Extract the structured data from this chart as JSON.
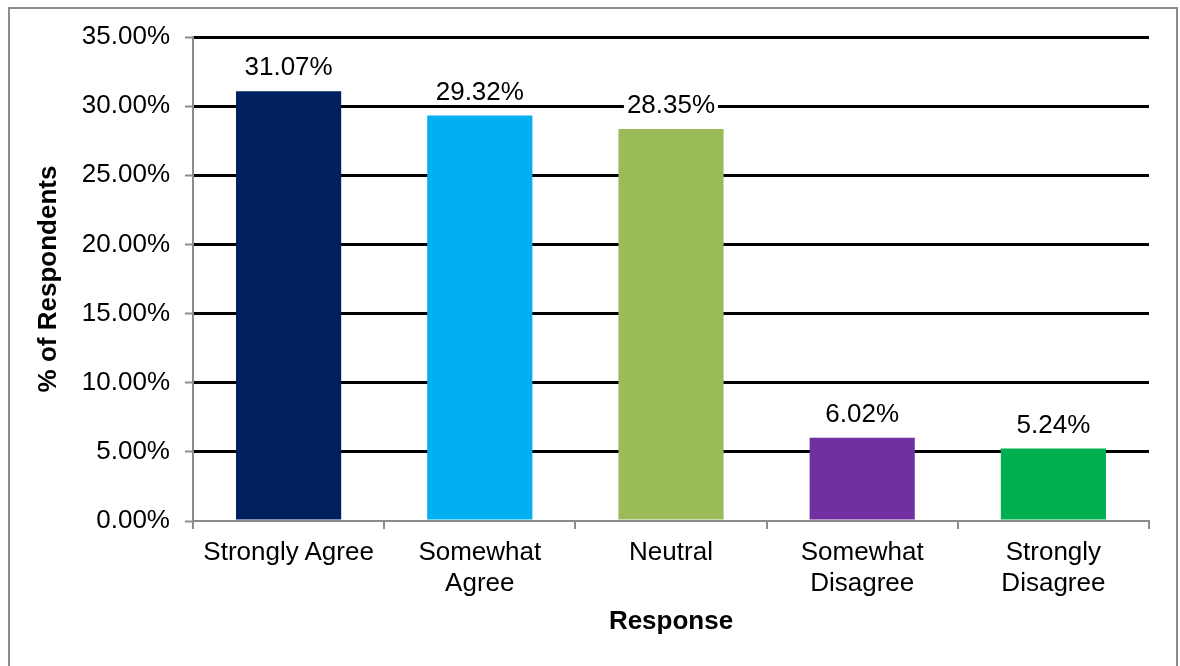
{
  "chart_data": {
    "type": "bar",
    "xlabel": "Response",
    "ylabel": "% of Respondents",
    "categories": [
      "Strongly Agree",
      "Somewhat Agree",
      "Neutral",
      "Somewhat Disagree",
      "Strongly Disagree"
    ],
    "values": [
      31.07,
      29.32,
      28.35,
      6.02,
      5.24
    ],
    "colors": [
      "#002060",
      "#00b0f0",
      "#9bbb59",
      "#7030a0",
      "#00b050"
    ],
    "value_labels": [
      "31.07%",
      "29.32%",
      "28.35%",
      "6.02%",
      "5.24%"
    ],
    "ylim": [
      0,
      35
    ],
    "yticks": [
      {
        "value": 0,
        "label": "0.00%"
      },
      {
        "value": 5,
        "label": "5.00%"
      },
      {
        "value": 10,
        "label": "10.00%"
      },
      {
        "value": 15,
        "label": "15.00%"
      },
      {
        "value": 20,
        "label": "20.00%"
      },
      {
        "value": 25,
        "label": "25.00%"
      },
      {
        "value": 30,
        "label": "30.00%"
      },
      {
        "value": 35,
        "label": "35.00%"
      }
    ],
    "grid": "y"
  }
}
